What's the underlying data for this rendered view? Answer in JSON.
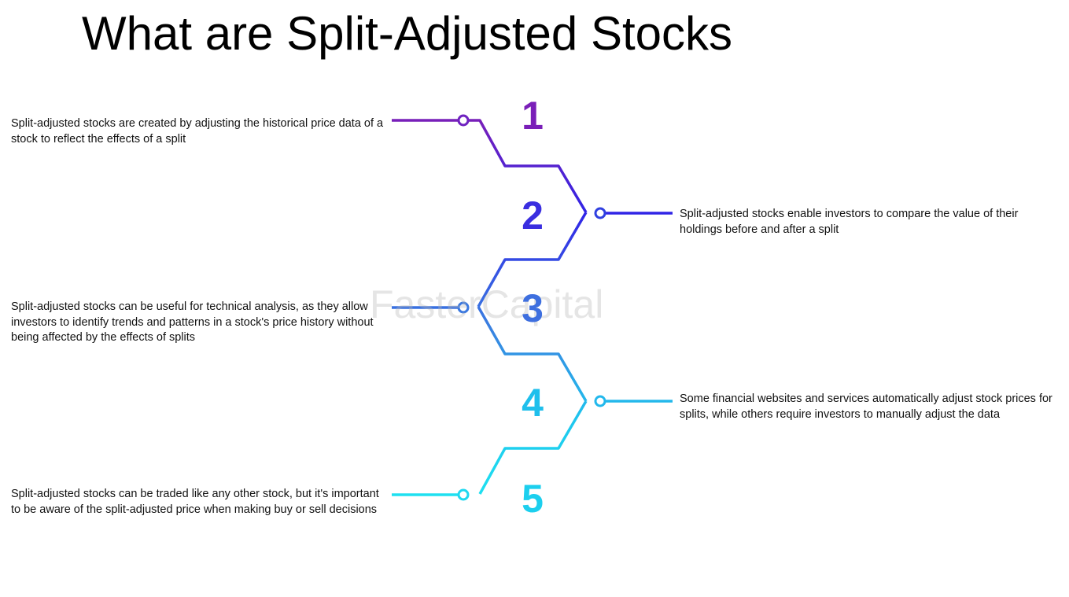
{
  "title": "What are Split-Adjusted Stocks",
  "watermark": "FasterCapital",
  "steps": [
    {
      "number": "1",
      "text": "Split-adjusted stocks are created by adjusting the historical price data of a stock to reflect the effects of a split"
    },
    {
      "number": "2",
      "text": "Split-adjusted stocks enable investors to compare the value of their holdings before and after a split"
    },
    {
      "number": "3",
      "text": "Split-adjusted stocks can be useful for technical analysis, as they allow investors to identify trends and patterns in a stock's price history without being affected by the effects of splits"
    },
    {
      "number": "4",
      "text": "Some financial websites and services automatically adjust stock prices for splits, while others require investors to manually adjust the data"
    },
    {
      "number": "5",
      "text": "Split-adjusted stocks can be traded like any other stock, but it's important to be aware of the split-adjusted price when making buy or sell decisions"
    }
  ]
}
